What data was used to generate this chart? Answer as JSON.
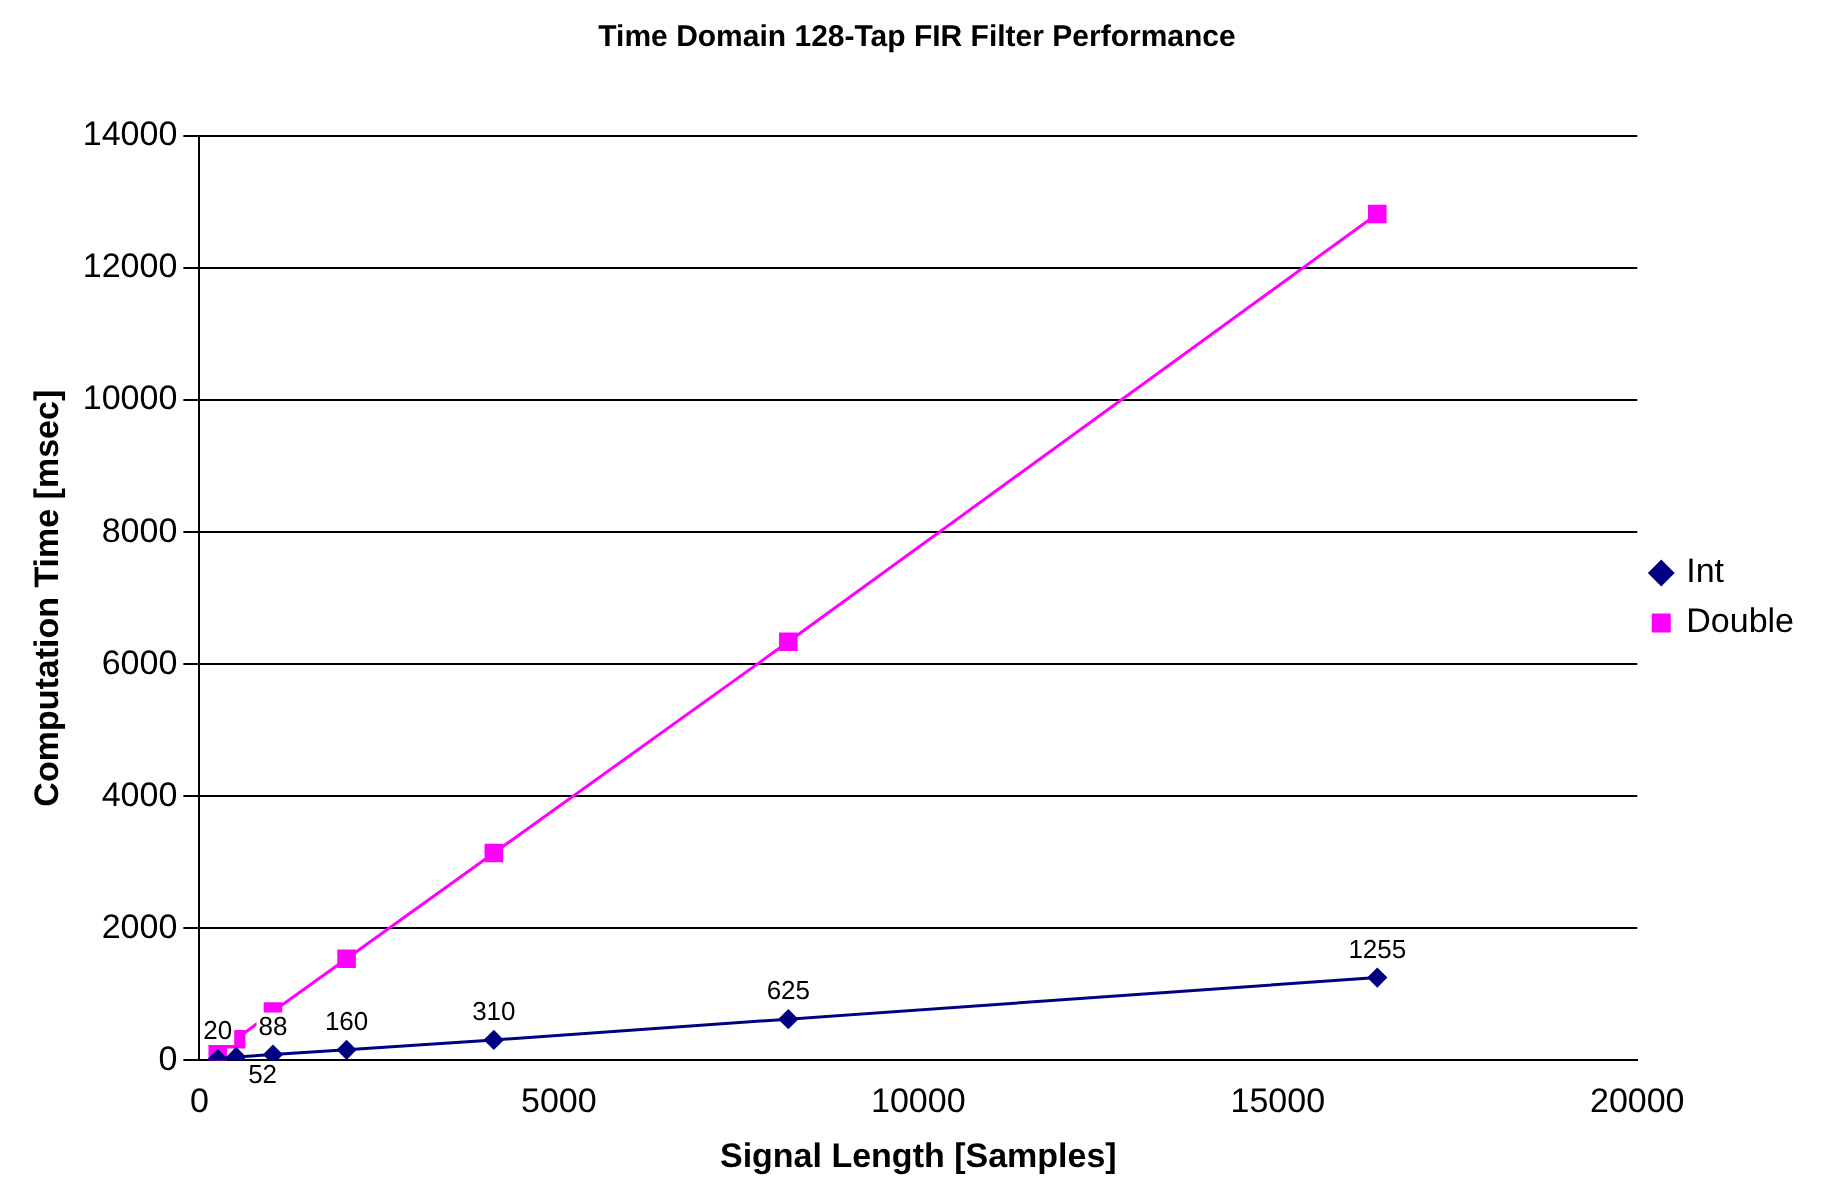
{
  "chart_data": {
    "type": "line",
    "title": "Time Domain 128-Tap FIR Filter Performance",
    "xlabel": "Signal Length [Samples]",
    "ylabel": "Computation Time [msec]",
    "x": [
      256,
      512,
      1024,
      2048,
      4096,
      8192,
      16384
    ],
    "series": [
      {
        "name": "Int",
        "color": "#000080",
        "marker": "diamond",
        "values": [
          20,
          52,
          88,
          160,
          310,
          625,
          1255
        ],
        "data_labels": true
      },
      {
        "name": "Double",
        "color": "#ff00ff",
        "marker": "square",
        "values": [
          100,
          320,
          740,
          1540,
          3140,
          6340,
          12820
        ]
      }
    ],
    "xlim": [
      0,
      20000
    ],
    "xticks": [
      0,
      5000,
      10000,
      15000,
      20000
    ],
    "ylim": [
      0,
      14000
    ],
    "yticks": [
      0,
      2000,
      4000,
      6000,
      8000,
      10000,
      12000,
      14000
    ],
    "grid": "y",
    "legend": "right",
    "line_style": "solid"
  }
}
